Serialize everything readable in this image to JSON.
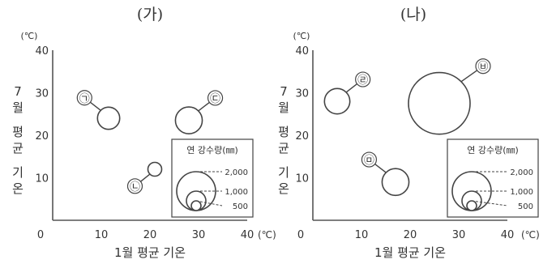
{
  "chart_data": [
    {
      "type": "scatter",
      "title": "(가)",
      "xlabel": "1월 평균 기온",
      "ylabel": "7월 평균 기온",
      "x_unit": "(℃)",
      "y_unit": "(℃)",
      "xlim": [
        0,
        40
      ],
      "ylim": [
        0,
        40
      ],
      "x_ticks": [
        "0",
        "10",
        "20",
        "30",
        "40"
      ],
      "y_ticks": [
        "10",
        "20",
        "30",
        "40"
      ],
      "points": [
        {
          "label": "㉠",
          "x": 11.5,
          "y": 24,
          "precip": 1300,
          "label_dir": "upper-left"
        },
        {
          "label": "㉡",
          "x": 21,
          "y": 12,
          "precip": 500,
          "label_dir": "lower-left"
        },
        {
          "label": "㉢",
          "x": 28,
          "y": 23.5,
          "precip": 1900,
          "label_dir": "upper-right"
        }
      ],
      "legend": {
        "title": "연 강수량(㎜)",
        "values": [
          "2,000",
          "1,000",
          "500"
        ]
      }
    },
    {
      "type": "scatter",
      "title": "(나)",
      "xlabel": "1월 평균 기온",
      "ylabel": "7월 평균 기온",
      "x_unit": "(℃)",
      "y_unit": "(℃)",
      "xlim": [
        0,
        40
      ],
      "ylim": [
        0,
        40
      ],
      "x_ticks": [
        "0",
        "10",
        "20",
        "30",
        "40"
      ],
      "y_ticks": [
        "10",
        "20",
        "30",
        "40"
      ],
      "points": [
        {
          "label": "㉣",
          "x": 5,
          "y": 28,
          "precip": 1700,
          "label_dir": "upper-right"
        },
        {
          "label": "㉤",
          "x": 17,
          "y": 9,
          "precip": 1900,
          "label_dir": "upper-left"
        },
        {
          "label": "㉥",
          "x": 26,
          "y": 27.5,
          "precip": 10000,
          "label_dir": "upper-right"
        }
      ],
      "legend": {
        "title": "연 강수량(㎜)",
        "values": [
          "2,000",
          "1,000",
          "500"
        ]
      }
    }
  ]
}
